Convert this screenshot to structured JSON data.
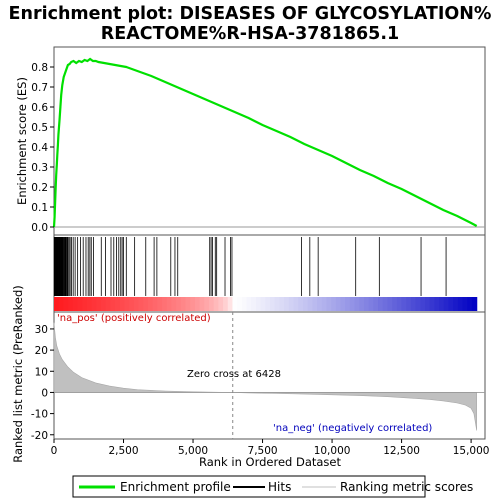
{
  "chart_data": {
    "type": "line",
    "title_line1": "Enrichment plot: DISEASES OF GLYCOSYLATION%",
    "title_line2": "REACTOME%R-HSA-3781865.1",
    "xlabel": "Rank in Ordered Dataset",
    "ylabel_top": "Enrichment score (ES)",
    "ylabel_bottom": "Ranked list metric (PreRanked)",
    "xlim": [
      0,
      15500
    ],
    "x_ticks": [
      0,
      2500,
      5000,
      7500,
      10000,
      12500,
      15000
    ],
    "x_tick_labels": [
      "0",
      "2,500",
      "5,000",
      "7,500",
      "10,000",
      "12,500",
      "15,000"
    ],
    "es_ylim": [
      -0.04,
      0.9
    ],
    "es_ticks": [
      0.0,
      0.1,
      0.2,
      0.3,
      0.4,
      0.5,
      0.6,
      0.7,
      0.8
    ],
    "es_tick_labels": [
      "0.0",
      "0.1",
      "0.2",
      "0.3",
      "0.4",
      "0.5",
      "0.6",
      "0.7",
      "0.8"
    ],
    "metric_ylim": [
      -22,
      38
    ],
    "metric_ticks": [
      -20,
      -10,
      0,
      10,
      20,
      30
    ],
    "metric_tick_labels": [
      "-20",
      "-10",
      "0",
      "10",
      "20",
      "30"
    ],
    "zero_cross_rank": 6428,
    "zero_cross_label": "Zero cross at 6428",
    "pos_label": "'na_pos' (positively correlated)",
    "neg_label": "'na_neg' (negatively correlated)",
    "total_ranks": 15200,
    "series": [
      {
        "name": "Enrichment profile",
        "color": "#00e000",
        "x": [
          0,
          20,
          40,
          60,
          80,
          100,
          120,
          140,
          160,
          180,
          200,
          230,
          260,
          300,
          350,
          400,
          450,
          500,
          560,
          620,
          700,
          800,
          900,
          1000,
          1100,
          1200,
          1300,
          1400,
          1500,
          1600,
          1800,
          2000,
          2200,
          2400,
          2600,
          3000,
          3500,
          4000,
          4500,
          5000,
          5500,
          6000,
          6500,
          7000,
          7500,
          8000,
          8500,
          9000,
          9500,
          10000,
          10500,
          11000,
          11500,
          12000,
          12500,
          13000,
          13500,
          14000,
          14500,
          15000,
          15200
        ],
        "y": [
          0.0,
          0.05,
          0.12,
          0.2,
          0.26,
          0.31,
          0.36,
          0.41,
          0.46,
          0.5,
          0.54,
          0.6,
          0.66,
          0.71,
          0.75,
          0.77,
          0.79,
          0.81,
          0.815,
          0.825,
          0.83,
          0.82,
          0.83,
          0.825,
          0.835,
          0.83,
          0.84,
          0.83,
          0.83,
          0.825,
          0.82,
          0.815,
          0.81,
          0.805,
          0.8,
          0.78,
          0.755,
          0.725,
          0.695,
          0.665,
          0.635,
          0.605,
          0.575,
          0.545,
          0.51,
          0.48,
          0.45,
          0.415,
          0.385,
          0.355,
          0.32,
          0.285,
          0.255,
          0.22,
          0.19,
          0.155,
          0.12,
          0.085,
          0.055,
          0.02,
          0.005
        ]
      }
    ],
    "hits": [
      10,
      25,
      40,
      55,
      70,
      85,
      100,
      115,
      130,
      145,
      160,
      175,
      190,
      205,
      220,
      235,
      250,
      265,
      280,
      300,
      320,
      340,
      360,
      380,
      400,
      420,
      440,
      470,
      500,
      540,
      580,
      630,
      690,
      760,
      850,
      950,
      1050,
      1150,
      1230,
      1290,
      1340,
      1420,
      1700,
      1850,
      2050,
      2150,
      2250,
      2330,
      2400,
      2450,
      2500,
      2600,
      2900,
      3300,
      3600,
      3700,
      4200,
      4350,
      4450,
      5600,
      5650,
      5700,
      5800,
      5850,
      6150,
      6350,
      6400,
      8900,
      9200,
      9500,
      10850,
      11700,
      13200,
      14100
    ],
    "metric_profile": {
      "x": [
        0,
        50,
        100,
        200,
        300,
        500,
        700,
        1000,
        1500,
        2000,
        2500,
        3000,
        4000,
        5000,
        6000,
        6428,
        7000,
        8000,
        9000,
        10000,
        11000,
        12000,
        13000,
        13500,
        14000,
        14500,
        14800,
        15000,
        15100,
        15150,
        15200
      ],
      "y": [
        33,
        26,
        22,
        18,
        15.5,
        12,
        9.5,
        7,
        4.5,
        3,
        2,
        1.3,
        0.7,
        0.3,
        0.05,
        0,
        -0.2,
        -0.5,
        -0.8,
        -1.1,
        -1.5,
        -2,
        -2.8,
        -3.3,
        -4,
        -5,
        -6,
        -7.5,
        -10,
        -14,
        -18
      ]
    },
    "legend": [
      {
        "label": "Enrichment profile",
        "color": "#00e000",
        "kind": "line"
      },
      {
        "label": "Hits",
        "color": "#000000",
        "kind": "line"
      },
      {
        "label": "Ranking metric scores",
        "color": "#c0c0c0",
        "kind": "line"
      }
    ]
  }
}
